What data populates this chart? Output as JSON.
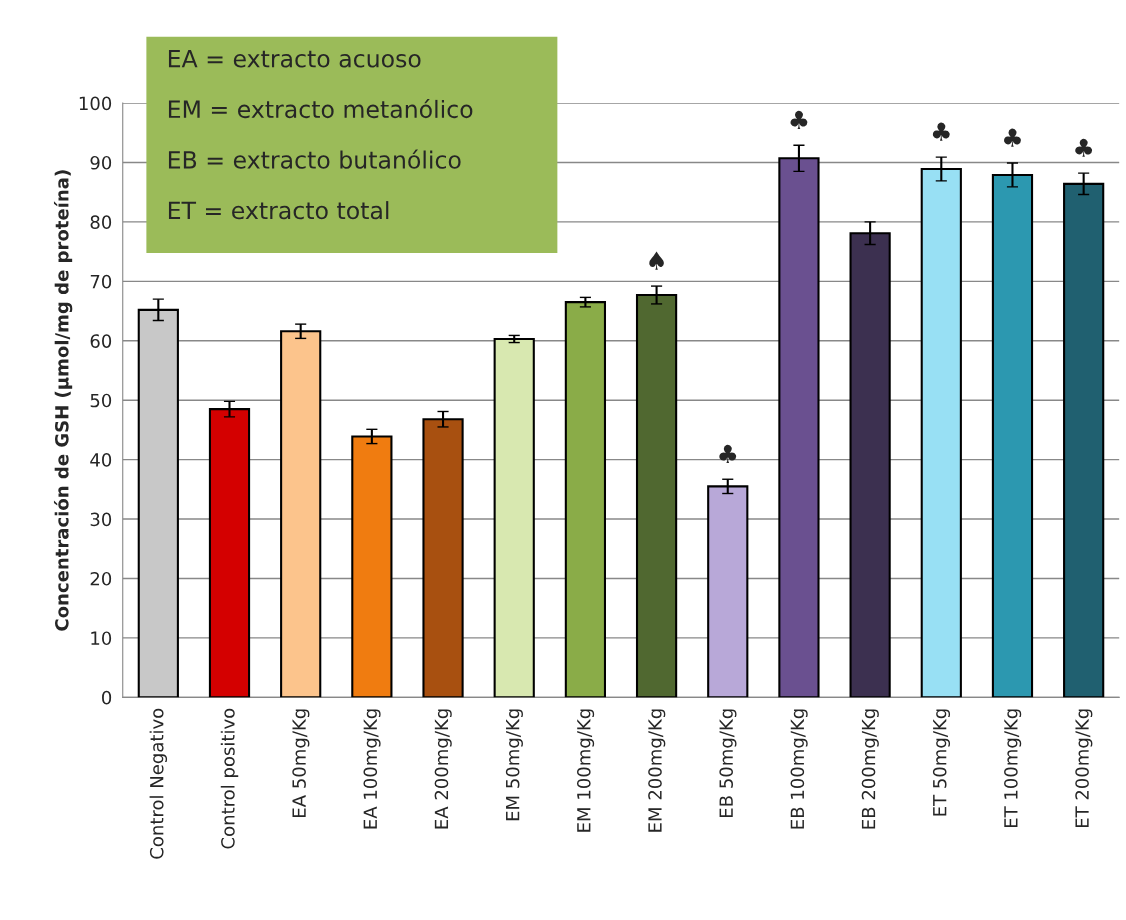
{
  "chart_data": {
    "type": "bar",
    "ylabel": "Concentración de GSH (µmol/mg de proteína)",
    "categories": [
      "Control Negativo",
      "Control positivo",
      "EA 50mg/Kg",
      "EA 100mg/Kg",
      "EA 200mg/Kg",
      "EM 50mg/Kg",
      "EM 100mg/Kg",
      "EM 200mg/Kg",
      "EB 50mg/Kg",
      "EB 100mg/Kg",
      "EB 200mg/Kg",
      "ET 50mg/Kg",
      "ET 100mg/Kg",
      "ET 200mg/Kg"
    ],
    "values": [
      65.2,
      48.5,
      61.6,
      43.9,
      46.8,
      60.3,
      66.5,
      67.7,
      35.5,
      90.7,
      78.1,
      88.9,
      87.9,
      86.4
    ],
    "errors": [
      1.8,
      1.3,
      1.2,
      1.2,
      1.3,
      0.6,
      0.8,
      1.5,
      1.2,
      2.2,
      1.9,
      2.0,
      2.0,
      1.8
    ],
    "colors": [
      "#c8c8c8",
      "#d40000",
      "#fcc48c",
      "#f07c10",
      "#a85010",
      "#d8e8b0",
      "#8aac48",
      "#506830",
      "#b8a8d8",
      "#6a5090",
      "#3c3050",
      "#98e0f4",
      "#2c98b0",
      "#206070"
    ],
    "ylim": [
      0,
      100
    ],
    "yticks": [
      0,
      10,
      20,
      30,
      40,
      50,
      60,
      70,
      80,
      90,
      100
    ],
    "grid": "y",
    "annotations": [
      "EA = extracto acuoso",
      "EM = extracto metanólico",
      "EB = extracto butanólico",
      "ET = extracto total",
      {
        "text": "♠",
        "x": "EM 200mg/Kg",
        "y": 67.7
      },
      {
        "text": "♣",
        "x": "EB 50mg/Kg",
        "y": 35.5
      },
      {
        "text": "♣",
        "x": "EB 100mg/Kg",
        "y": 90.7
      },
      {
        "text": "♣",
        "x": "ET 50mg/Kg",
        "y": 88.9
      },
      {
        "text": "♣",
        "x": "ET 100mg/Kg",
        "y": 87.9
      },
      {
        "text": "♣",
        "x": "ET 200mg/Kg",
        "y": 86.4
      }
    ]
  }
}
